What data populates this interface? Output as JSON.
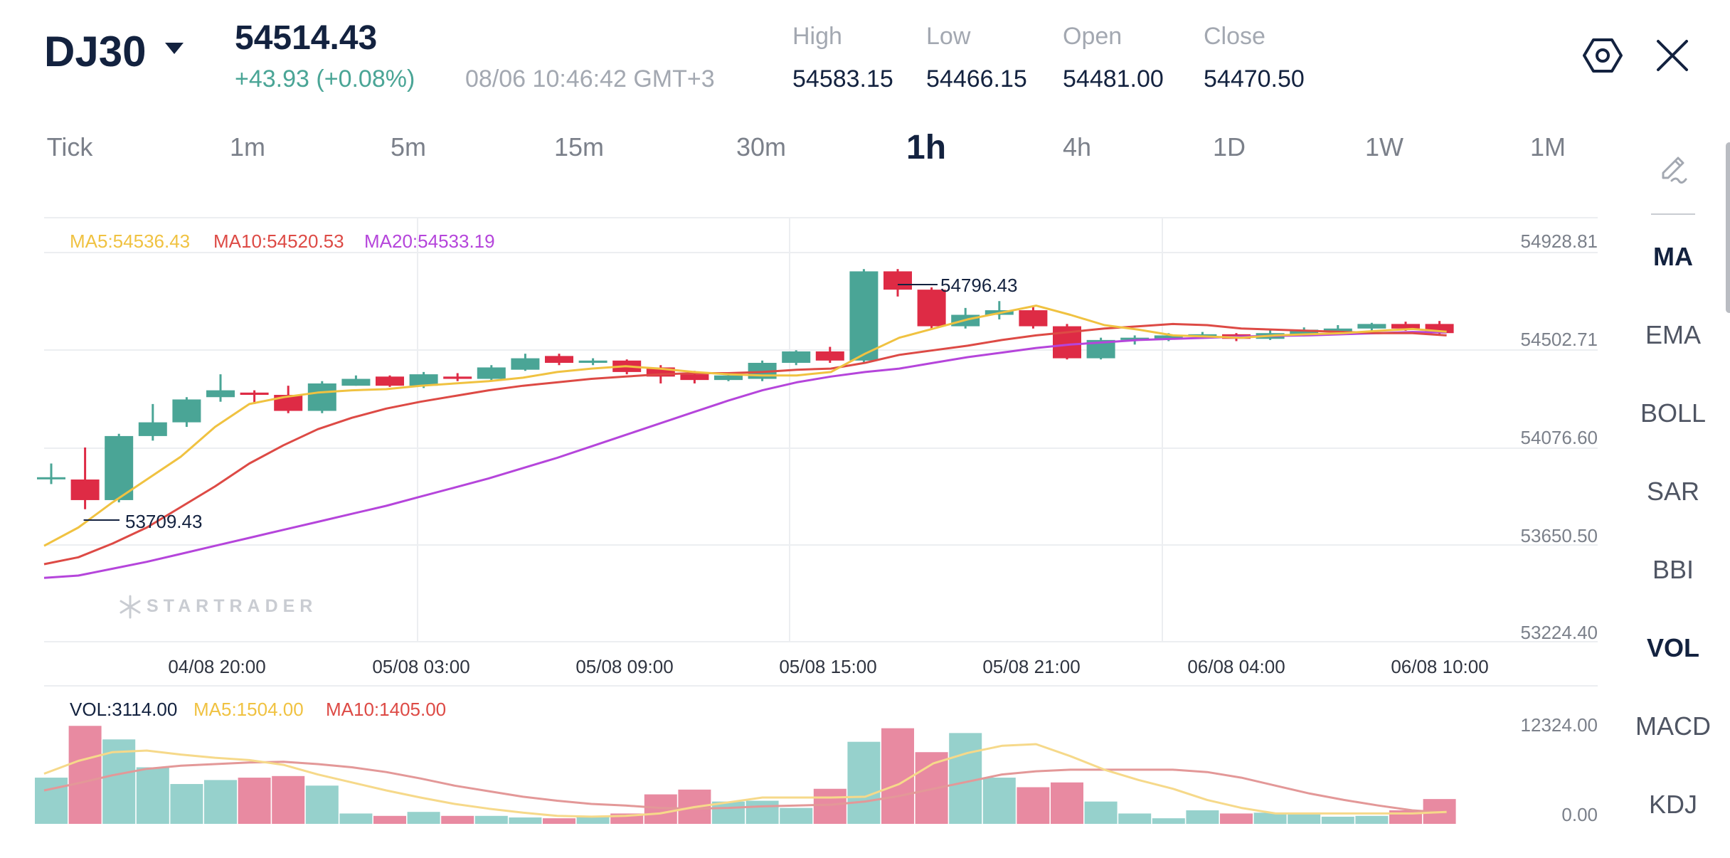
{
  "header": {
    "symbol": "DJ30",
    "price": "54514.43",
    "change": "+43.93 (+0.08%)",
    "datetime": "08/06 10:46:42 GMT+3",
    "ohlc": [
      {
        "label": "High",
        "value": "54583.15"
      },
      {
        "label": "Low",
        "value": "54466.15"
      },
      {
        "label": "Open",
        "value": "54481.00"
      },
      {
        "label": "Close",
        "value": "54470.50"
      }
    ],
    "icons": {
      "settings": "settings-hex-icon",
      "close": "close-icon",
      "caret": "caret-down-icon"
    }
  },
  "timeframes": {
    "items": [
      "Tick",
      "1m",
      "5m",
      "15m",
      "30m",
      "1h",
      "4h",
      "1D",
      "1W",
      "1M"
    ],
    "active": "1h"
  },
  "indicator_menu": {
    "edit_icon": "pen-icon",
    "items": [
      "MA",
      "EMA",
      "BOLL",
      "SAR",
      "BBI",
      "VOL",
      "MACD",
      "KDJ"
    ],
    "active": [
      "MA",
      "VOL"
    ]
  },
  "watermark": "STARTRADER",
  "colors": {
    "up": "#4aa596",
    "down": "#de2b45",
    "ma5": "#f0c241",
    "ma10": "#dd4a45",
    "ma20": "#b545db",
    "grid": "#eceef1",
    "text": "#13223f",
    "muted": "#a3a8b1"
  },
  "price_legend": {
    "ma5": "MA5:54536.43",
    "ma10": "MA10:54520.53",
    "ma20": "MA20:54533.19"
  },
  "vol_legend": {
    "vol": "VOL:3114.00",
    "ma5": "MA5:1504.00",
    "ma10": "MA10:1405.00"
  },
  "markers": {
    "high": "54796.43",
    "low": "53709.43"
  },
  "chart_data": {
    "type": "candlestick",
    "y_ticks": [
      "54928.81",
      "54502.71",
      "54076.60",
      "53650.50",
      "53224.40"
    ],
    "ylim": [
      53224.4,
      54928.81
    ],
    "x_ticks": [
      "04/08 20:00",
      "05/08 03:00",
      "05/08 09:00",
      "05/08 15:00",
      "05/08 21:00",
      "06/08 04:00",
      "06/08 10:00"
    ],
    "candles": [
      [
        53900,
        53900,
        53870,
        53960
      ],
      [
        53890,
        53800,
        53760,
        54030
      ],
      [
        53800,
        54080,
        53790,
        54090
      ],
      [
        54080,
        54140,
        54060,
        54220
      ],
      [
        54140,
        54240,
        54120,
        54250
      ],
      [
        54250,
        54280,
        54230,
        54350
      ],
      [
        54270,
        54260,
        54220,
        54280
      ],
      [
        54260,
        54190,
        54180,
        54300
      ],
      [
        54190,
        54310,
        54180,
        54320
      ],
      [
        54300,
        54330,
        54300,
        54345
      ],
      [
        54340,
        54300,
        54295,
        54345
      ],
      [
        54300,
        54350,
        54290,
        54360
      ],
      [
        54340,
        54330,
        54320,
        54355
      ],
      [
        54330,
        54380,
        54320,
        54390
      ],
      [
        54370,
        54420,
        54365,
        54440
      ],
      [
        54430,
        54400,
        54390,
        54440
      ],
      [
        54400,
        54410,
        54390,
        54420
      ],
      [
        54410,
        54360,
        54350,
        54415
      ],
      [
        54380,
        54340,
        54310,
        54390
      ],
      [
        54350,
        54325,
        54310,
        54365
      ],
      [
        54325,
        54345,
        54320,
        54355
      ],
      [
        54330,
        54400,
        54320,
        54410
      ],
      [
        54400,
        54450,
        54390,
        54455
      ],
      [
        54450,
        54410,
        54400,
        54470
      ],
      [
        54410,
        54800,
        54400,
        54810
      ],
      [
        54800,
        54720,
        54690,
        54810
      ],
      [
        54720,
        54560,
        54550,
        54730
      ],
      [
        54560,
        54610,
        54550,
        54640
      ],
      [
        54610,
        54630,
        54590,
        54670
      ],
      [
        54630,
        54560,
        54550,
        54650
      ],
      [
        54560,
        54420,
        54415,
        54570
      ],
      [
        54420,
        54500,
        54415,
        54510
      ],
      [
        54500,
        54510,
        54480,
        54520
      ],
      [
        54505,
        54520,
        54495,
        54530
      ],
      [
        54515,
        54525,
        54505,
        54535
      ],
      [
        54525,
        54505,
        54495,
        54530
      ],
      [
        54505,
        54530,
        54500,
        54545
      ],
      [
        54525,
        54545,
        54515,
        54555
      ],
      [
        54535,
        54550,
        54525,
        54565
      ],
      [
        54550,
        54570,
        54540,
        54575
      ],
      [
        54570,
        54550,
        54540,
        54580
      ],
      [
        54570,
        54530,
        54520,
        54583
      ]
    ],
    "ma5": [
      53600,
      53680,
      53790,
      53890,
      53990,
      54120,
      54220,
      54250,
      54270,
      54280,
      54285,
      54300,
      54310,
      54320,
      54335,
      54360,
      54375,
      54385,
      54375,
      54360,
      54350,
      54345,
      54345,
      54360,
      54440,
      54510,
      54550,
      54590,
      54620,
      54650,
      54610,
      54565,
      54545,
      54520,
      54515,
      54510,
      54520,
      54525,
      54530,
      54540,
      54548,
      54536
    ],
    "ma10": [
      53520,
      53550,
      53610,
      53680,
      53770,
      53860,
      53960,
      54040,
      54110,
      54160,
      54200,
      54230,
      54255,
      54280,
      54300,
      54315,
      54330,
      54340,
      54350,
      54355,
      54355,
      54360,
      54370,
      54375,
      54400,
      54435,
      54455,
      54475,
      54500,
      54520,
      54535,
      54550,
      54560,
      54570,
      54565,
      54550,
      54545,
      54540,
      54535,
      54530,
      54530,
      54520
    ],
    "ma20": [
      53460,
      53470,
      53500,
      53530,
      53565,
      53600,
      53635,
      53670,
      53705,
      53740,
      53775,
      53815,
      53855,
      53895,
      53940,
      53985,
      54035,
      54085,
      54135,
      54185,
      54235,
      54280,
      54315,
      54340,
      54360,
      54375,
      54400,
      54425,
      54445,
      54465,
      54480,
      54490,
      54500,
      54505,
      54510,
      54515,
      54518,
      54520,
      54525,
      54530,
      54535,
      54533
    ]
  },
  "vol_data": {
    "y_ticks": [
      "12324.00",
      "0.00"
    ],
    "ylim": [
      0,
      12324
    ],
    "values": [
      5800,
      12300,
      10600,
      7100,
      5000,
      5500,
      5800,
      6000,
      4800,
      1300,
      1000,
      1500,
      1000,
      1000,
      800,
      700,
      900,
      1300,
      3700,
      4300,
      2800,
      2900,
      2000,
      4400,
      10300,
      12000,
      9000,
      11400,
      5800,
      4600,
      5200,
      2800,
      1300,
      700,
      1700,
      1300,
      1400,
      1200,
      900,
      1000,
      1700,
      3114
    ],
    "ma5": [
      6300,
      7900,
      9000,
      9200,
      8700,
      8300,
      8000,
      7400,
      6200,
      5200,
      4200,
      3300,
      2500,
      1900,
      1400,
      1000,
      900,
      1000,
      1300,
      2100,
      2700,
      3300,
      3300,
      3300,
      3400,
      5000,
      7600,
      8900,
      9800,
      10000,
      8500,
      6800,
      5500,
      4400,
      3000,
      2000,
      1300,
      1300,
      1300,
      1300,
      1300,
      1504
    ],
    "ma10": [
      4200,
      5100,
      6100,
      6900,
      7300,
      7500,
      7700,
      7800,
      7500,
      7100,
      6500,
      5700,
      4800,
      4100,
      3400,
      2900,
      2500,
      2300,
      2000,
      1900,
      2000,
      2200,
      2300,
      2400,
      2800,
      3500,
      4400,
      5300,
      6200,
      6600,
      6800,
      6800,
      6800,
      6800,
      6500,
      5800,
      4800,
      3800,
      3000,
      2300,
      1700,
      1405
    ]
  }
}
